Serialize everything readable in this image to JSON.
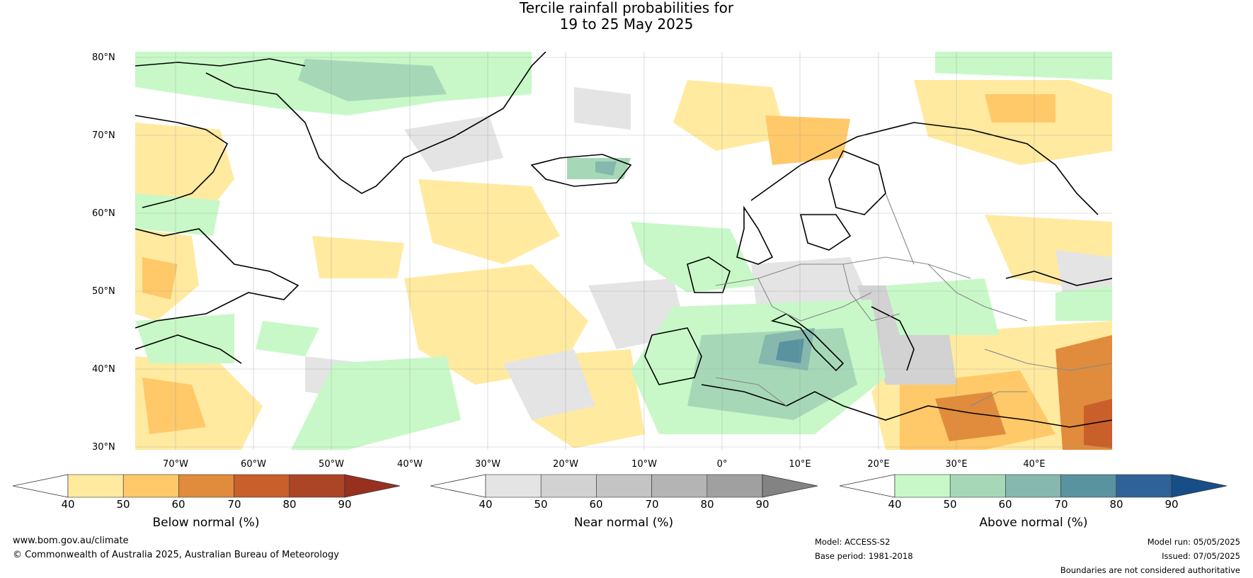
{
  "title": {
    "line1": "Tercile rainfall probabilities for",
    "line2": "19 to 25 May 2025"
  },
  "axes": {
    "lat_labels": [
      "80°N",
      "70°N",
      "60°N",
      "50°N",
      "40°N",
      "30°N"
    ],
    "lon_labels": [
      "70°W",
      "60°W",
      "50°W",
      "40°W",
      "30°W",
      "20°W",
      "10°W",
      "0°",
      "10°E",
      "20°E",
      "30°E",
      "40°E"
    ]
  },
  "colorbars": [
    {
      "label": "Below normal (%)",
      "ticks": [
        "40",
        "50",
        "60",
        "70",
        "80",
        "90"
      ],
      "colors": [
        "#ffffff",
        "#ffeaa0",
        "#ffc96a",
        "#e08c3c",
        "#c95f2a",
        "#ac4426",
        "#983020"
      ]
    },
    {
      "label": "Near normal (%)",
      "ticks": [
        "40",
        "50",
        "60",
        "70",
        "80",
        "90"
      ],
      "colors": [
        "#ffffff",
        "#e4e4e4",
        "#d2d2d2",
        "#c4c4c4",
        "#b4b4b4",
        "#a0a0a0",
        "#838383"
      ]
    },
    {
      "label": "Above normal (%)",
      "ticks": [
        "40",
        "50",
        "60",
        "70",
        "80",
        "90"
      ],
      "colors": [
        "#ffffff",
        "#c8f8c8",
        "#a6d8b8",
        "#86b8ae",
        "#5a93a0",
        "#2f6298",
        "#174e88"
      ]
    }
  ],
  "footer": {
    "url": "www.bom.gov.au/climate",
    "copyright": "© Commonwealth of Australia 2025, Australian Bureau of Meteorology",
    "model": "Model: ACCESS-S2",
    "base_period": "Base period: 1981-2018",
    "model_run": "Model run: 05/05/2025",
    "issued": "Issued: 07/05/2025",
    "disclaimer": "Boundaries are not considered authoritative"
  }
}
